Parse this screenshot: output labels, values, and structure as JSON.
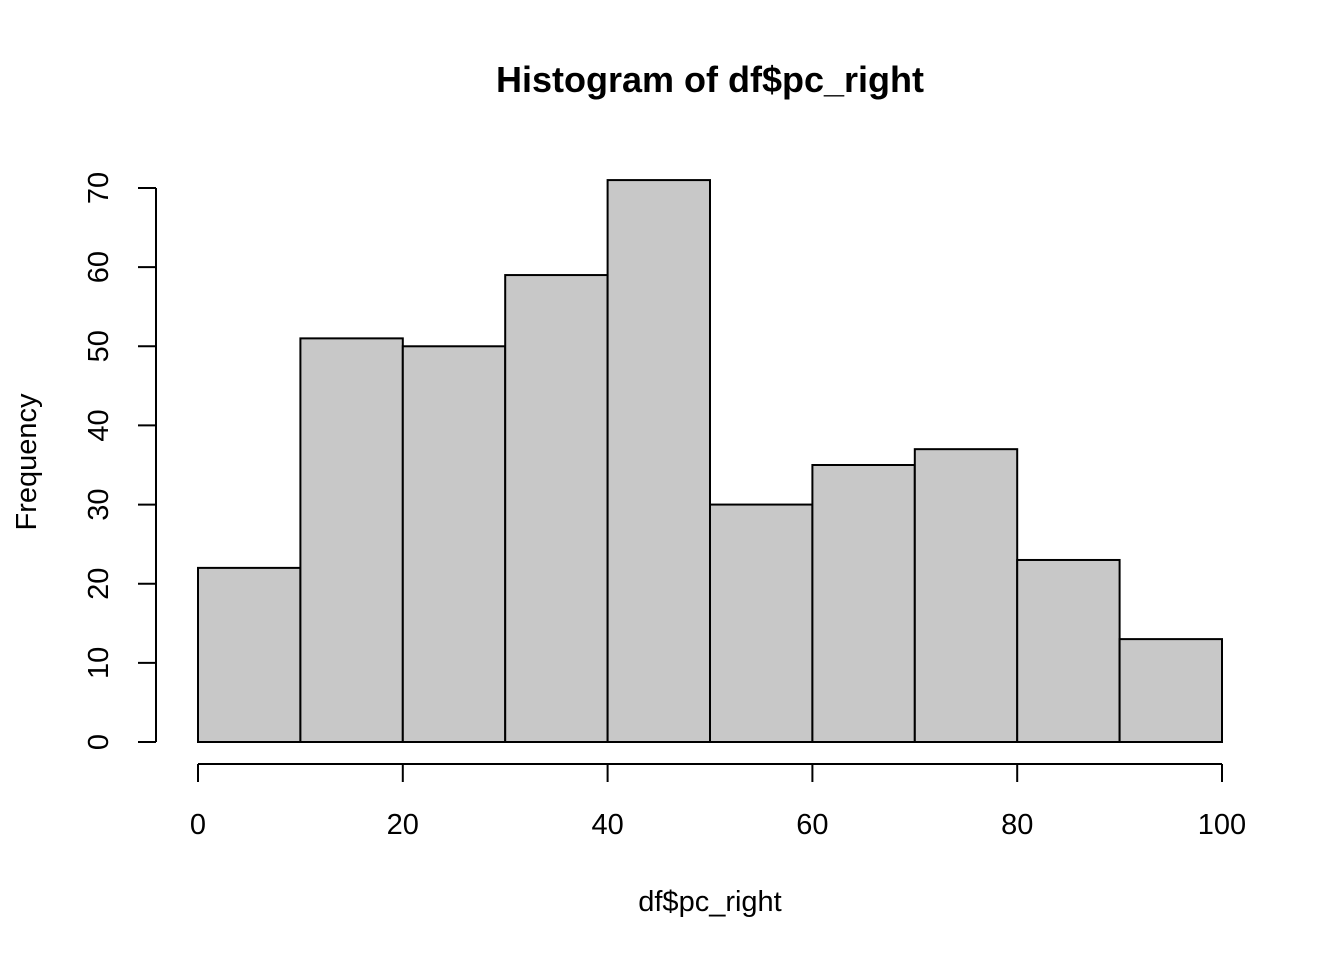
{
  "chart_data": {
    "type": "bar",
    "subtype": "histogram",
    "title": "Histogram of df$pc_right",
    "xlabel": "df$pc_right",
    "ylabel": "Frequency",
    "bin_edges": [
      0,
      10,
      20,
      30,
      40,
      50,
      60,
      70,
      80,
      90,
      100
    ],
    "values": [
      22,
      51,
      50,
      59,
      71,
      30,
      35,
      37,
      23,
      13
    ],
    "xlim": [
      0,
      100
    ],
    "ylim": [
      0,
      70
    ],
    "x_ticks": [
      0,
      20,
      40,
      60,
      80,
      100
    ],
    "y_ticks": [
      0,
      10,
      20,
      30,
      40,
      50,
      60,
      70
    ],
    "grid": false,
    "legend": "none",
    "bar_color": "#c8c8c8",
    "border_color": "#000000"
  }
}
